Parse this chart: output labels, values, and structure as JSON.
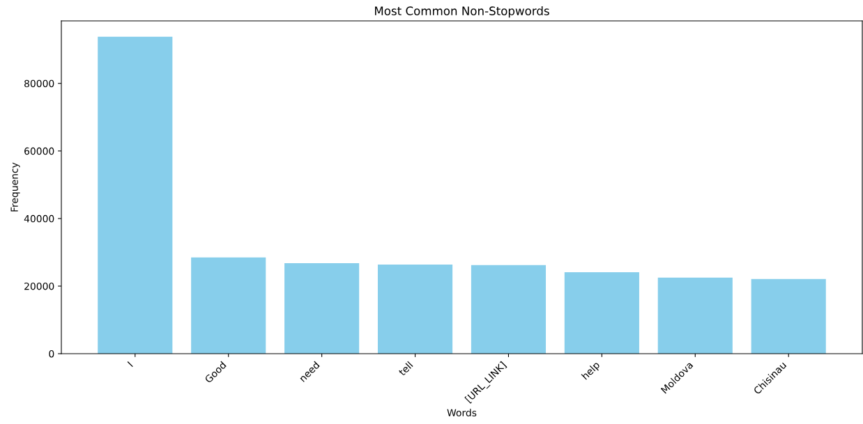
{
  "chart_data": {
    "type": "bar",
    "title": "Most Common Non-Stopwords",
    "xlabel": "Words",
    "ylabel": "Frequency",
    "categories": [
      "I",
      "Good",
      "need",
      "tell",
      "[URL_LINK]",
      "help",
      "Moldova",
      "Chisinau"
    ],
    "values": [
      93800,
      28500,
      26800,
      26400,
      26200,
      24100,
      22500,
      22100
    ],
    "color": "#87ceeb",
    "ylim": [
      0,
      98500
    ],
    "yticks": [
      0,
      20000,
      40000,
      60000,
      80000
    ],
    "grid": false,
    "legend": false
  }
}
